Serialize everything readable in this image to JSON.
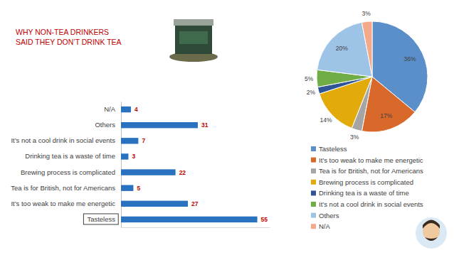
{
  "chart_data": [
    {
      "type": "bar",
      "title": "WHY NON-TEA DRINKERS SAID THEY DON’T DRINK TEA",
      "orientation": "horizontal",
      "categories": [
        "N/A",
        "Others",
        "It’s not a cool drink in social events",
        "Drinking tea is a waste of time",
        "Brewing process is complicated",
        "Tea is for British, not for Americans",
        "It’s too weak to make me energetic",
        "Tasteless"
      ],
      "values": [
        4,
        31,
        7,
        3,
        22,
        5,
        27,
        55
      ],
      "color": "#2a72c0",
      "xlim": [
        0,
        60
      ],
      "xticks": [],
      "data_labels": true,
      "tick_labels": "y"
    },
    {
      "type": "pie",
      "categories": [
        "Tasteless",
        "It’s too weak to make me energetic",
        "Tea is for British, not for Americans",
        "Brewing process is complicated",
        "Drinking tea is a waste of time",
        "It’s not a cool drink in social events",
        "Others",
        "N/A"
      ],
      "values": [
        36,
        17,
        3,
        14,
        2,
        5,
        20,
        3
      ],
      "value_labels": [
        "36%",
        "17%",
        "3%",
        "14%",
        "2%",
        "5%",
        "20%",
        "3%"
      ],
      "colors": [
        "#5b8fc9",
        "#d9692a",
        "#a5a5a5",
        "#e3aa0b",
        "#2f5597",
        "#70ad47",
        "#9dc3e6",
        "#f4a98a"
      ],
      "data_labels": true,
      "legend": "bottom"
    }
  ]
}
